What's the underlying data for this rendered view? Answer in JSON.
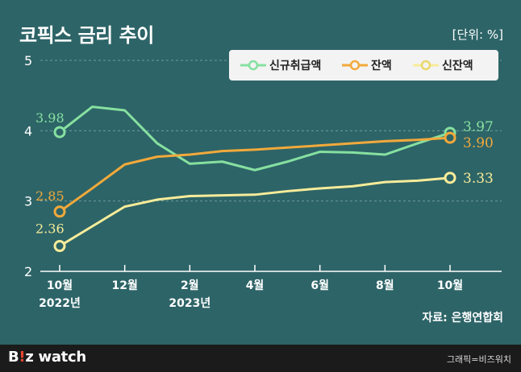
{
  "title": "코픽스 금리 추이",
  "unit": "[단위: %]",
  "source": "자료: 은행연합회",
  "footer": {
    "logo_prefix": "B",
    "logo_mark": "!",
    "logo_suffix": "z watch",
    "credit": "그래픽=비즈워치"
  },
  "colors": {
    "background": "#2d6467",
    "green": "#86e0a0",
    "orange": "#f2a93b",
    "yellow": "#f7ec9a"
  },
  "chart_data": {
    "type": "line",
    "title": "코픽스 금리 추이",
    "unit_label": "[단위: %]",
    "x": [
      0,
      1,
      2,
      3,
      4,
      5,
      6,
      7,
      8,
      9,
      10,
      11,
      12
    ],
    "xtick_positions": [
      0,
      2,
      4,
      6,
      8,
      10,
      12
    ],
    "xtick_labels": [
      {
        "line1": "10월",
        "line2": "2022년"
      },
      {
        "line1": "12월",
        "line2": ""
      },
      {
        "line1": "2월",
        "line2": "2023년"
      },
      {
        "line1": "4월",
        "line2": ""
      },
      {
        "line1": "6월",
        "line2": ""
      },
      {
        "line1": "8월",
        "line2": ""
      },
      {
        "line1": "10월",
        "line2": ""
      }
    ],
    "ylim": [
      2,
      5
    ],
    "yticks": [
      2,
      3,
      4,
      5
    ],
    "grid": true,
    "legend_position": "top-right",
    "series": [
      {
        "name": "신규취급액",
        "color": "#86e0a0",
        "values": [
          3.98,
          4.34,
          4.29,
          3.82,
          3.53,
          3.56,
          3.44,
          3.56,
          3.7,
          3.69,
          3.66,
          3.82,
          3.97
        ],
        "start_label": "3.98",
        "end_label": "3.97"
      },
      {
        "name": "잔액",
        "color": "#f2a93b",
        "values": [
          2.85,
          3.18,
          3.52,
          3.63,
          3.66,
          3.71,
          3.73,
          3.76,
          3.79,
          3.82,
          3.85,
          3.87,
          3.9
        ],
        "start_label": "2.85",
        "end_label": "3.90"
      },
      {
        "name": "신잔액",
        "color": "#f7ec9a",
        "values": [
          2.36,
          2.64,
          2.92,
          3.02,
          3.07,
          3.08,
          3.09,
          3.14,
          3.18,
          3.21,
          3.27,
          3.29,
          3.33
        ],
        "start_label": "2.36",
        "end_label": "3.33"
      }
    ]
  }
}
